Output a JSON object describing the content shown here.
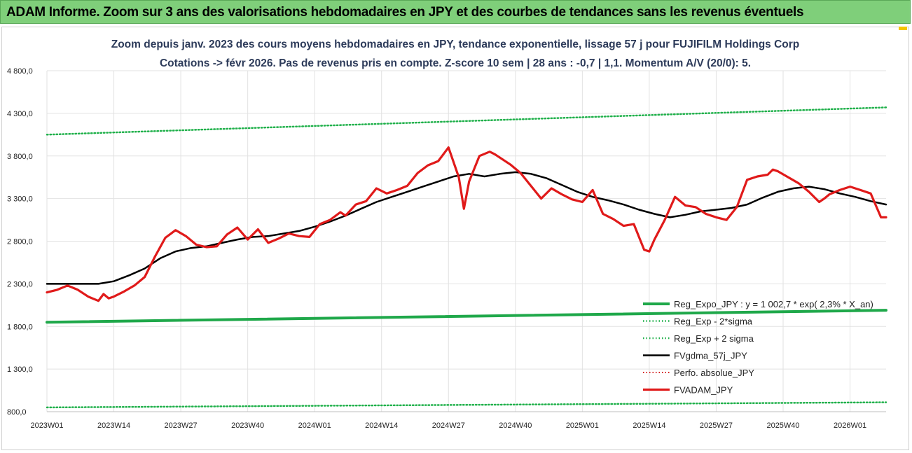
{
  "header": {
    "title": "ADAM Informe. Zoom sur 3 ans des valorisations hebdomadaires en JPY et des courbes de tendances sans les revenus éventuels"
  },
  "colors": {
    "banner": "#7fcf7a",
    "regression": "#1fa84a",
    "sigma": "#1fb04a",
    "smoothed": "#000000",
    "perf": "#d42020",
    "price": "#e01a1a",
    "grid": "#e2e2e2",
    "title_text": "#2d3b5a"
  },
  "chart_data": {
    "type": "line",
    "title": "Zoom depuis janv. 2023 des cours moyens hebdomadaires en JPY, tendance exponentielle, lissage 57 j pour FUJIFILM Holdings Corp",
    "subtitle": "Cotations -> févr 2026. Pas de revenus pris en compte. Z-score 10 sem | 28 ans : -0,7 | 1,1. Momentum A/V (20/0): 5.",
    "xlabel": "",
    "ylabel": "",
    "ylim": [
      800,
      4800
    ],
    "yticks": [
      800,
      1300,
      1800,
      2300,
      2800,
      3300,
      3800,
      4300,
      4800
    ],
    "ytick_labels": [
      "800,0",
      "1 300,0",
      "1 800,0",
      "2 300,0",
      "2 800,0",
      "3 300,0",
      "3 800,0",
      "4 300,0",
      "4 800,0"
    ],
    "xlim": [
      0,
      163
    ],
    "xticks": [
      0,
      13,
      26,
      39,
      52,
      65,
      78,
      91,
      104,
      117,
      130,
      143,
      156
    ],
    "xtick_labels": [
      "2023W01",
      "2023W14",
      "2023W27",
      "2023W40",
      "2024W01",
      "2024W14",
      "2024W27",
      "2024W40",
      "2025W01",
      "2025W14",
      "2025W27",
      "2025W40",
      "2026W01"
    ],
    "grid": true,
    "legend_position": "bottom-right",
    "series": [
      {
        "name": "Reg_Expo_JPY : y = 1 002,7 * exp( 2,3% * X_an)",
        "style": "solid-thick",
        "x": [
          0,
          163
        ],
        "values": [
          1850,
          1990
        ]
      },
      {
        "name": "Reg_Exp - 2*sigma",
        "style": "dotted",
        "x": [
          0,
          163
        ],
        "values": [
          850,
          910
        ]
      },
      {
        "name": "Reg_Exp + 2 sigma",
        "style": "dotted",
        "x": [
          0,
          163
        ],
        "values": [
          4050,
          4370
        ]
      },
      {
        "name": "FVgdma_57j_JPY",
        "style": "solid",
        "x": [
          0,
          5,
          10,
          13,
          16,
          19,
          22,
          25,
          28,
          31,
          34,
          37,
          40,
          43,
          46,
          49,
          52,
          55,
          58,
          61,
          64,
          67,
          70,
          73,
          76,
          79,
          82,
          85,
          88,
          91,
          94,
          97,
          100,
          103,
          106,
          109,
          112,
          115,
          118,
          121,
          124,
          127,
          130,
          133,
          136,
          139,
          142,
          145,
          148,
          151,
          154,
          157,
          160,
          163
        ],
        "values": [
          2300,
          2300,
          2300,
          2330,
          2400,
          2480,
          2600,
          2680,
          2720,
          2740,
          2780,
          2820,
          2850,
          2860,
          2890,
          2920,
          2970,
          3030,
          3100,
          3180,
          3260,
          3320,
          3380,
          3440,
          3500,
          3560,
          3590,
          3560,
          3590,
          3610,
          3590,
          3540,
          3460,
          3380,
          3320,
          3280,
          3230,
          3170,
          3120,
          3080,
          3110,
          3150,
          3170,
          3190,
          3230,
          3310,
          3380,
          3420,
          3440,
          3410,
          3360,
          3320,
          3270,
          3230
        ]
      },
      {
        "name": "Perfo. absolue_JPY",
        "style": "dotted",
        "x": [],
        "values": []
      },
      {
        "name": "FVADAM_JPY",
        "style": "solid-thick",
        "x": [
          0,
          2,
          4,
          6,
          8,
          10,
          11,
          12,
          13,
          15,
          17,
          19,
          21,
          23,
          25,
          27,
          29,
          31,
          33,
          35,
          37,
          39,
          41,
          43,
          45,
          47,
          49,
          51,
          53,
          55,
          57,
          58,
          60,
          62,
          64,
          66,
          68,
          70,
          72,
          74,
          76,
          78,
          80,
          81,
          82,
          84,
          86,
          87,
          88,
          90,
          92,
          94,
          96,
          98,
          100,
          102,
          104,
          106,
          108,
          110,
          112,
          114,
          116,
          117,
          118,
          120,
          122,
          124,
          126,
          128,
          130,
          132,
          134,
          136,
          138,
          140,
          141,
          142,
          144,
          146,
          148,
          150,
          151,
          152,
          154,
          156,
          158,
          160,
          162,
          163
        ],
        "values": [
          2200,
          2230,
          2280,
          2230,
          2150,
          2100,
          2180,
          2130,
          2150,
          2210,
          2280,
          2380,
          2620,
          2840,
          2930,
          2860,
          2760,
          2730,
          2740,
          2880,
          2960,
          2820,
          2940,
          2780,
          2830,
          2890,
          2860,
          2850,
          3000,
          3050,
          3140,
          3100,
          3230,
          3270,
          3420,
          3360,
          3400,
          3450,
          3600,
          3690,
          3740,
          3900,
          3550,
          3180,
          3500,
          3800,
          3850,
          3820,
          3780,
          3700,
          3600,
          3450,
          3300,
          3420,
          3350,
          3290,
          3260,
          3400,
          3120,
          3060,
          2980,
          3000,
          2700,
          2680,
          2820,
          3050,
          3320,
          3220,
          3200,
          3120,
          3080,
          3050,
          3200,
          3520,
          3560,
          3580,
          3640,
          3620,
          3550,
          3480,
          3380,
          3260,
          3300,
          3350,
          3400,
          3440,
          3400,
          3360,
          3080,
          3080
        ]
      }
    ]
  }
}
